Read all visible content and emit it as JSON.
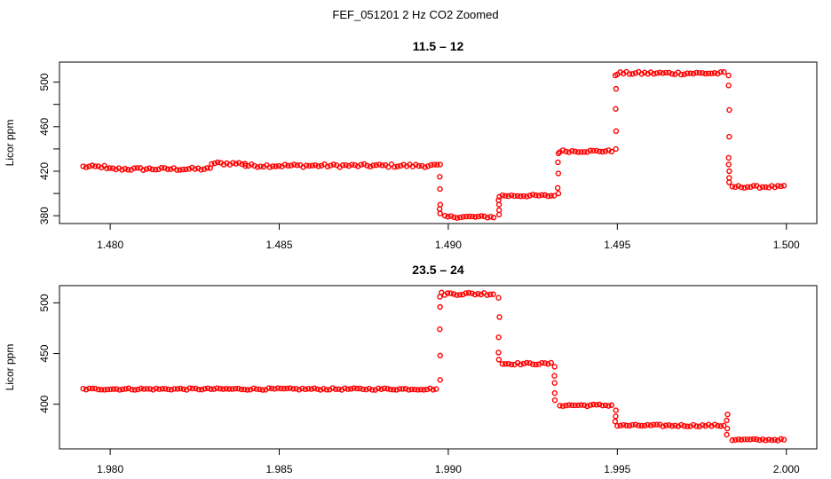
{
  "figure": {
    "title": "FEF_051201 2 Hz CO2 Zoomed"
  },
  "style": {
    "point_color": "#ff0000"
  },
  "chart_data": [
    {
      "type": "scatter",
      "title": "11.5 – 12",
      "xlabel": "",
      "ylabel": "Licor ppm",
      "xlim": [
        1.4785,
        1.5009
      ],
      "ylim": [
        373,
        518
      ],
      "xticks": [
        1.48,
        1.485,
        1.49,
        1.495,
        1.5
      ],
      "xtick_labels": [
        "1.480",
        "1.485",
        "1.490",
        "1.495",
        "1.500"
      ],
      "yticks": [
        380,
        420,
        460,
        500
      ],
      "ytick_labels": [
        "380",
        "420",
        "460",
        "500"
      ],
      "extra_yticks": [
        400,
        440,
        480
      ],
      "grid": false,
      "marker": "open-circle",
      "points_step": 9e-05,
      "segments": [
        {
          "x": [
            1.4792,
            1.4799
          ],
          "y": 424,
          "noise": 1.2
        },
        {
          "x": [
            1.4799,
            1.483
          ],
          "y": 422,
          "noise": 1.3
        },
        {
          "x": [
            1.483,
            1.484
          ],
          "y": 427,
          "noise": 1.4
        },
        {
          "x": [
            1.484,
            1.4897
          ],
          "y": 425,
          "noise": 1.4
        },
        {
          "x": [
            1.4899,
            1.4914
          ],
          "y": 379,
          "noise": 1.0
        },
        {
          "x": [
            1.4916,
            1.4932
          ],
          "y": 398,
          "noise": 1.0
        },
        {
          "x": [
            1.4933,
            1.4949
          ],
          "y": 438,
          "noise": 1.0
        },
        {
          "x": [
            1.495,
            1.4982
          ],
          "y": 508,
          "noise": 1.3
        },
        {
          "x": [
            1.4984,
            1.5
          ],
          "y": 406,
          "noise": 1.0
        }
      ],
      "transitions": [
        {
          "x": 1.48975,
          "y": [
            426,
            415,
            404,
            390,
            386,
            382
          ]
        },
        {
          "x": 1.4915,
          "y": [
            381,
            385,
            390,
            394,
            397
          ]
        },
        {
          "x": 1.49325,
          "y": [
            400,
            405,
            418,
            428,
            436
          ]
        },
        {
          "x": 1.49495,
          "y": [
            440,
            456,
            476,
            494,
            506
          ]
        },
        {
          "x": 1.4983,
          "y": [
            506,
            497,
            475,
            451,
            432,
            426,
            420,
            414,
            410
          ]
        }
      ]
    },
    {
      "type": "scatter",
      "title": "23.5 – 24",
      "xlabel": "",
      "ylabel": "Licor ppm",
      "xlim": [
        1.9785,
        2.0009
      ],
      "ylim": [
        356,
        517
      ],
      "xticks": [
        1.98,
        1.985,
        1.99,
        1.995,
        2.0
      ],
      "xtick_labels": [
        "1.980",
        "1.985",
        "1.990",
        "1.995",
        "2.000"
      ],
      "yticks": [
        400,
        450,
        500
      ],
      "ytick_labels": [
        "400",
        "450",
        "500"
      ],
      "extra_yticks": [],
      "grid": false,
      "marker": "open-circle",
      "points_step": 9e-05,
      "segments": [
        {
          "x": [
            1.9792,
            1.9897
          ],
          "y": 415,
          "noise": 0.9
        },
        {
          "x": [
            1.9898,
            1.9914
          ],
          "y": 509,
          "noise": 1.4
        },
        {
          "x": [
            1.9916,
            1.9931
          ],
          "y": 440,
          "noise": 1.0
        },
        {
          "x": [
            1.9933,
            1.9949
          ],
          "y": 399,
          "noise": 1.0
        },
        {
          "x": [
            1.995,
            1.9982
          ],
          "y": 379,
          "noise": 1.0
        },
        {
          "x": [
            1.9984,
            2.0
          ],
          "y": 365,
          "noise": 0.8
        }
      ],
      "transitions": [
        {
          "x": 1.98975,
          "y": [
            424,
            448,
            474,
            496,
            506
          ]
        },
        {
          "x": 1.9915,
          "y": [
            505,
            486,
            466,
            451,
            444
          ]
        },
        {
          "x": 1.99315,
          "y": [
            437,
            428,
            421,
            411,
            404
          ]
        },
        {
          "x": 1.99495,
          "y": [
            394,
            388,
            383
          ]
        },
        {
          "x": 1.99825,
          "y": [
            390,
            384,
            376,
            370
          ]
        }
      ]
    }
  ]
}
